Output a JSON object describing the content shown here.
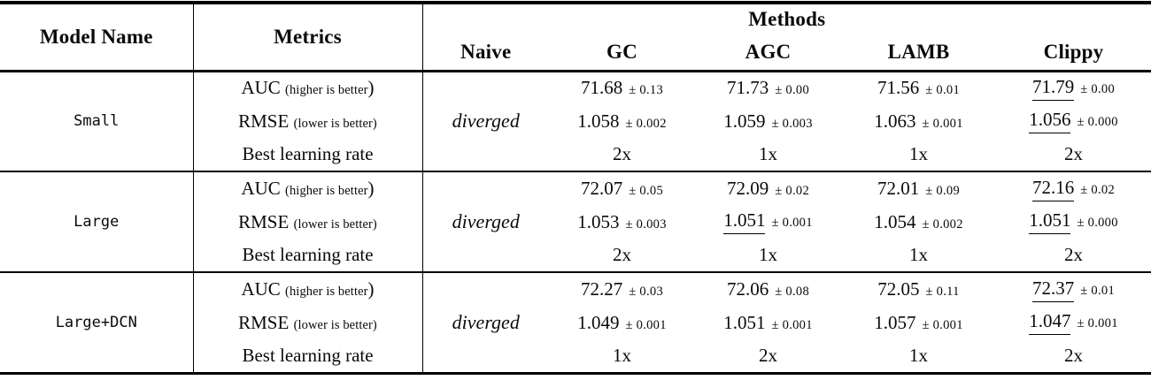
{
  "table": {
    "header": {
      "col_model": "Model Name",
      "col_metrics": "Metrics",
      "methods_label": "Methods",
      "methods": {
        "naive": "Naive",
        "gc": "GC",
        "agc": "AGC",
        "lamb": "LAMB",
        "clippy": "Clippy"
      }
    },
    "metric_labels": {
      "auc": "AUC",
      "auc_note": "(higher is better",
      "auc_paren": ")",
      "rmse": "RMSE",
      "rmse_note": "(lower is better)",
      "lr": "Best learning rate"
    },
    "groups": [
      {
        "model": "Small",
        "naive": "diverged",
        "auc": {
          "gc": "71.68",
          "gc_err": "± 0.13",
          "agc": "71.73",
          "agc_err": "± 0.00",
          "lamb": "71.56",
          "lamb_err": "± 0.01",
          "clippy": "71.79",
          "clippy_err": "± 0.00"
        },
        "rmse": {
          "gc": "1.058",
          "gc_err": "± 0.002",
          "agc": "1.059",
          "agc_err": "± 0.003",
          "lamb": "1.063",
          "lamb_err": "± 0.001",
          "clippy": "1.056",
          "clippy_err": "± 0.000"
        },
        "lr": {
          "gc": "2x",
          "agc": "1x",
          "lamb": "1x",
          "clippy": "2x"
        }
      },
      {
        "model": "Large",
        "naive": "diverged",
        "auc": {
          "gc": "72.07",
          "gc_err": "± 0.05",
          "agc": "72.09",
          "agc_err": "± 0.02",
          "lamb": "72.01",
          "lamb_err": "± 0.09",
          "clippy": "72.16",
          "clippy_err": "± 0.02"
        },
        "rmse": {
          "gc": "1.053",
          "gc_err": "± 0.003",
          "agc": "1.051",
          "agc_err": "± 0.001",
          "lamb": "1.054",
          "lamb_err": "± 0.002",
          "clippy": "1.051",
          "clippy_err": "± 0.000"
        },
        "lr": {
          "gc": "2x",
          "agc": "1x",
          "lamb": "1x",
          "clippy": "2x"
        }
      },
      {
        "model": "Large+DCN",
        "naive": "diverged",
        "auc": {
          "gc": "72.27",
          "gc_err": "± 0.03",
          "agc": "72.06",
          "agc_err": "± 0.08",
          "lamb": "72.05",
          "lamb_err": "± 0.11",
          "clippy": "72.37",
          "clippy_err": "± 0.01"
        },
        "rmse": {
          "gc": "1.049",
          "gc_err": "± 0.001",
          "agc": "1.051",
          "agc_err": "± 0.001",
          "lamb": "1.057",
          "lamb_err": "± 0.001",
          "clippy": "1.047",
          "clippy_err": "± 0.001"
        },
        "lr": {
          "gc": "1x",
          "agc": "2x",
          "lamb": "1x",
          "clippy": "2x"
        }
      }
    ]
  }
}
